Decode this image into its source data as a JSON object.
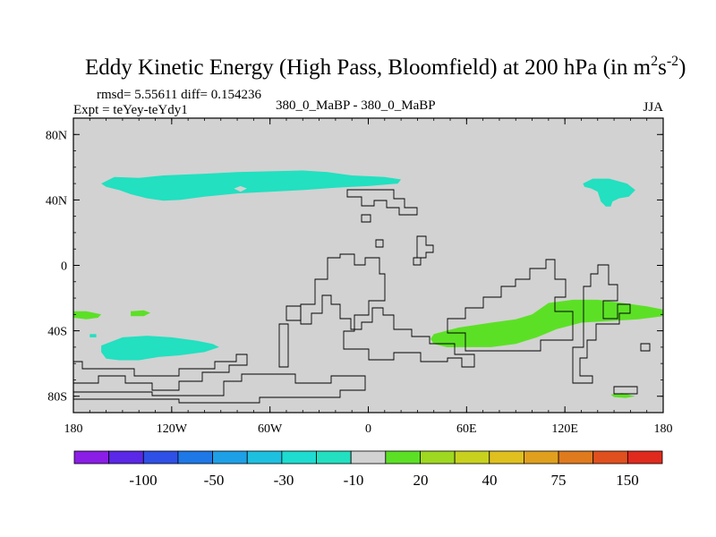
{
  "chart_data": {
    "type": "heatmap",
    "title": "Eddy Kinetic Energy (High Pass, Bloomfield) at 200 hPa (in m",
    "title_units": {
      "base1": "2",
      "mid": "s",
      "exp2": "-2",
      "close": ")"
    },
    "stats": "rmsd= 5.55611 diff= 0.154236",
    "expt": "Expt = teYey-teYdy1",
    "comparison": "380_0_MaBP - 380_0_MaBP",
    "season": "JJA",
    "x_range": [
      -180,
      180
    ],
    "y_range": [
      -90,
      90
    ],
    "x_ticks": [
      {
        "value": -180,
        "label": "180"
      },
      {
        "value": -120,
        "label": "120W"
      },
      {
        "value": -60,
        "label": "60W"
      },
      {
        "value": 0,
        "label": "0"
      },
      {
        "value": 60,
        "label": "60E"
      },
      {
        "value": 120,
        "label": "120E"
      },
      {
        "value": 180,
        "label": "180"
      }
    ],
    "y_ticks": [
      {
        "value": 80,
        "label": "80N"
      },
      {
        "value": 40,
        "label": "40N"
      },
      {
        "value": 0,
        "label": "0"
      },
      {
        "value": -40,
        "label": "40S"
      },
      {
        "value": -80,
        "label": "80S"
      }
    ],
    "background_color": "#d2d2d2",
    "regions": [
      {
        "name": "nh-pacific-negative",
        "value": -10,
        "color": "#22e0c0",
        "polygon": [
          [
            -163,
            50
          ],
          [
            -155,
            54
          ],
          [
            -140,
            53.5
          ],
          [
            -125,
            55
          ],
          [
            -100,
            56
          ],
          [
            -80,
            57
          ],
          [
            -60,
            57.5
          ],
          [
            -40,
            58
          ],
          [
            -25,
            57
          ],
          [
            -10,
            55
          ],
          [
            10,
            54
          ],
          [
            20,
            52.5
          ],
          [
            18,
            50
          ],
          [
            0,
            48.5
          ],
          [
            -20,
            47.5
          ],
          [
            -40,
            46
          ],
          [
            -60,
            45
          ],
          [
            -80,
            44
          ],
          [
            -100,
            42
          ],
          [
            -115,
            40
          ],
          [
            -125,
            39.5
          ],
          [
            -135,
            41
          ],
          [
            -145,
            43.5
          ],
          [
            -152,
            46
          ],
          [
            -160,
            48
          ]
        ]
      },
      {
        "name": "nh-east-negative",
        "value": -10,
        "color": "#22e0c0",
        "polygon": [
          [
            131,
            50
          ],
          [
            137,
            53
          ],
          [
            147,
            53
          ],
          [
            158,
            50
          ],
          [
            163,
            46
          ],
          [
            159,
            42
          ],
          [
            153,
            41
          ],
          [
            149,
            39
          ],
          [
            148,
            36
          ],
          [
            145,
            36
          ],
          [
            142,
            39
          ],
          [
            140,
            45
          ],
          [
            136,
            47
          ],
          [
            132,
            48
          ]
        ]
      },
      {
        "name": "sh-west-negative",
        "value": -10,
        "color": "#22e0c0",
        "polygon": [
          [
            -163,
            -49
          ],
          [
            -150,
            -44
          ],
          [
            -135,
            -43
          ],
          [
            -120,
            -44
          ],
          [
            -105,
            -46
          ],
          [
            -95,
            -48
          ],
          [
            -91,
            -50
          ],
          [
            -100,
            -53
          ],
          [
            -115,
            -55
          ],
          [
            -128,
            -56
          ],
          [
            -140,
            -58
          ],
          [
            -152,
            -58
          ],
          [
            -160,
            -57
          ],
          [
            -163,
            -53
          ]
        ]
      },
      {
        "name": "sh-central-positive",
        "value": 20,
        "color": "#5ce026",
        "polygon": [
          [
            40,
            -42
          ],
          [
            55,
            -38
          ],
          [
            75,
            -35
          ],
          [
            90,
            -33
          ],
          [
            100,
            -30
          ],
          [
            110,
            -23
          ],
          [
            125,
            -21
          ],
          [
            140,
            -21
          ],
          [
            155,
            -23
          ],
          [
            170,
            -25
          ],
          [
            180,
            -27
          ],
          [
            180,
            -31
          ],
          [
            165,
            -33
          ],
          [
            148,
            -34
          ],
          [
            130,
            -35
          ],
          [
            115,
            -39
          ],
          [
            103,
            -44
          ],
          [
            90,
            -48
          ],
          [
            75,
            -50
          ],
          [
            60,
            -50
          ],
          [
            48,
            -50
          ],
          [
            40,
            -48
          ],
          [
            38,
            -45
          ]
        ]
      },
      {
        "name": "sh-far-west-positive",
        "value": 20,
        "color": "#5ce026",
        "polygon": [
          [
            -180,
            -28
          ],
          [
            -172,
            -28
          ],
          [
            -163,
            -30
          ],
          [
            -165,
            -32
          ],
          [
            -172,
            -33
          ],
          [
            -180,
            -32
          ]
        ]
      },
      {
        "name": "sh-small-positive",
        "value": 20,
        "color": "#5ce026",
        "polygon": [
          [
            -145,
            -28
          ],
          [
            -137,
            -27.5
          ],
          [
            -133,
            -29
          ],
          [
            -137,
            -31
          ],
          [
            -145,
            -31
          ]
        ]
      },
      {
        "name": "sh-south-positive",
        "value": 20,
        "color": "#5ce026",
        "polygon": [
          [
            148,
            -79
          ],
          [
            155,
            -78
          ],
          [
            163,
            -80
          ],
          [
            157,
            -81
          ],
          [
            150,
            -80.5
          ]
        ]
      },
      {
        "name": "sh-tiny-negative",
        "value": -10,
        "color": "#22e0c0",
        "polygon": [
          [
            -170,
            -42
          ],
          [
            -166,
            -42
          ],
          [
            -166,
            -44
          ],
          [
            -170,
            -44
          ]
        ]
      }
    ],
    "holes": [
      {
        "name": "nh-pacific-hole",
        "polygon": [
          [
            -82,
            47
          ],
          [
            -78,
            48.5
          ],
          [
            -74,
            47
          ],
          [
            -78,
            45
          ]
        ]
      }
    ],
    "colorbar": {
      "colors": [
        "#8a1ee6",
        "#5a28e6",
        "#2f50e6",
        "#1e78e6",
        "#1ea0e6",
        "#1ec0e0",
        "#1edcd0",
        "#22e0c0",
        "#d2d2d2",
        "#5ce026",
        "#9ed820",
        "#c8d21e",
        "#e0c01e",
        "#e0a01e",
        "#e07a1e",
        "#e0501e",
        "#e02a1e"
      ],
      "labels": [
        "-100",
        "-50",
        "-30",
        "-10",
        "20",
        "40",
        "75",
        "150"
      ]
    }
  }
}
